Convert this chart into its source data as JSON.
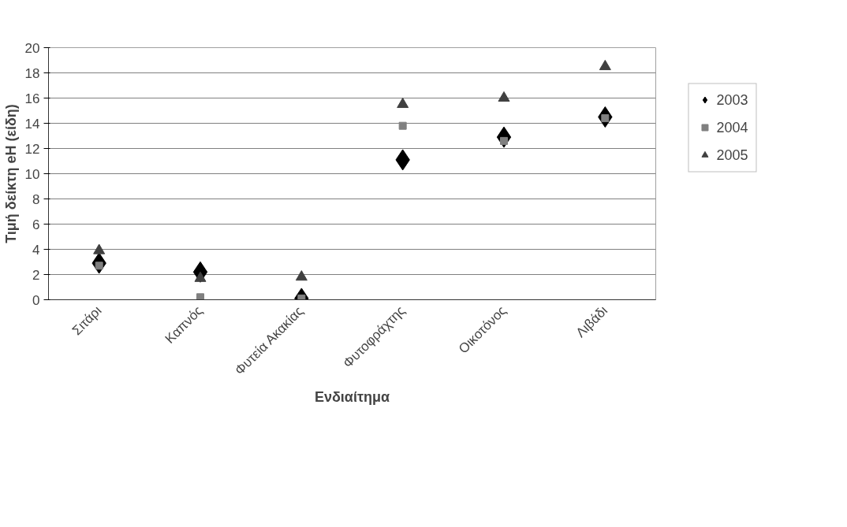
{
  "chart_data": {
    "type": "scatter",
    "xlabel": "Ενδιαίτημα",
    "ylabel": "Τιμή δείκτη eH (είδη)",
    "categories": [
      "Σιτάρι",
      "Καπνός",
      "Φυτεία Ακακίας",
      "Φυτοφράχτης",
      "Οικοτόνος",
      "Λιβάδι"
    ],
    "series": [
      {
        "name": "2003",
        "color": "#000000",
        "marker": "diamond",
        "values": [
          2.9,
          2.2,
          0.1,
          11.1,
          12.9,
          14.5
        ]
      },
      {
        "name": "2004",
        "color": "#808080",
        "marker": "square",
        "values": [
          2.7,
          0.2,
          0.1,
          13.8,
          12.6,
          14.4
        ]
      },
      {
        "name": "2005",
        "color": "#404040",
        "marker": "triangle",
        "values": [
          3.9,
          1.7,
          1.8,
          15.5,
          16.0,
          18.5
        ]
      }
    ],
    "ylim": [
      0,
      20
    ],
    "yticks": [
      0,
      2,
      4,
      6,
      8,
      10,
      12,
      14,
      16,
      18,
      20
    ],
    "grid": "y",
    "legend": "right"
  }
}
